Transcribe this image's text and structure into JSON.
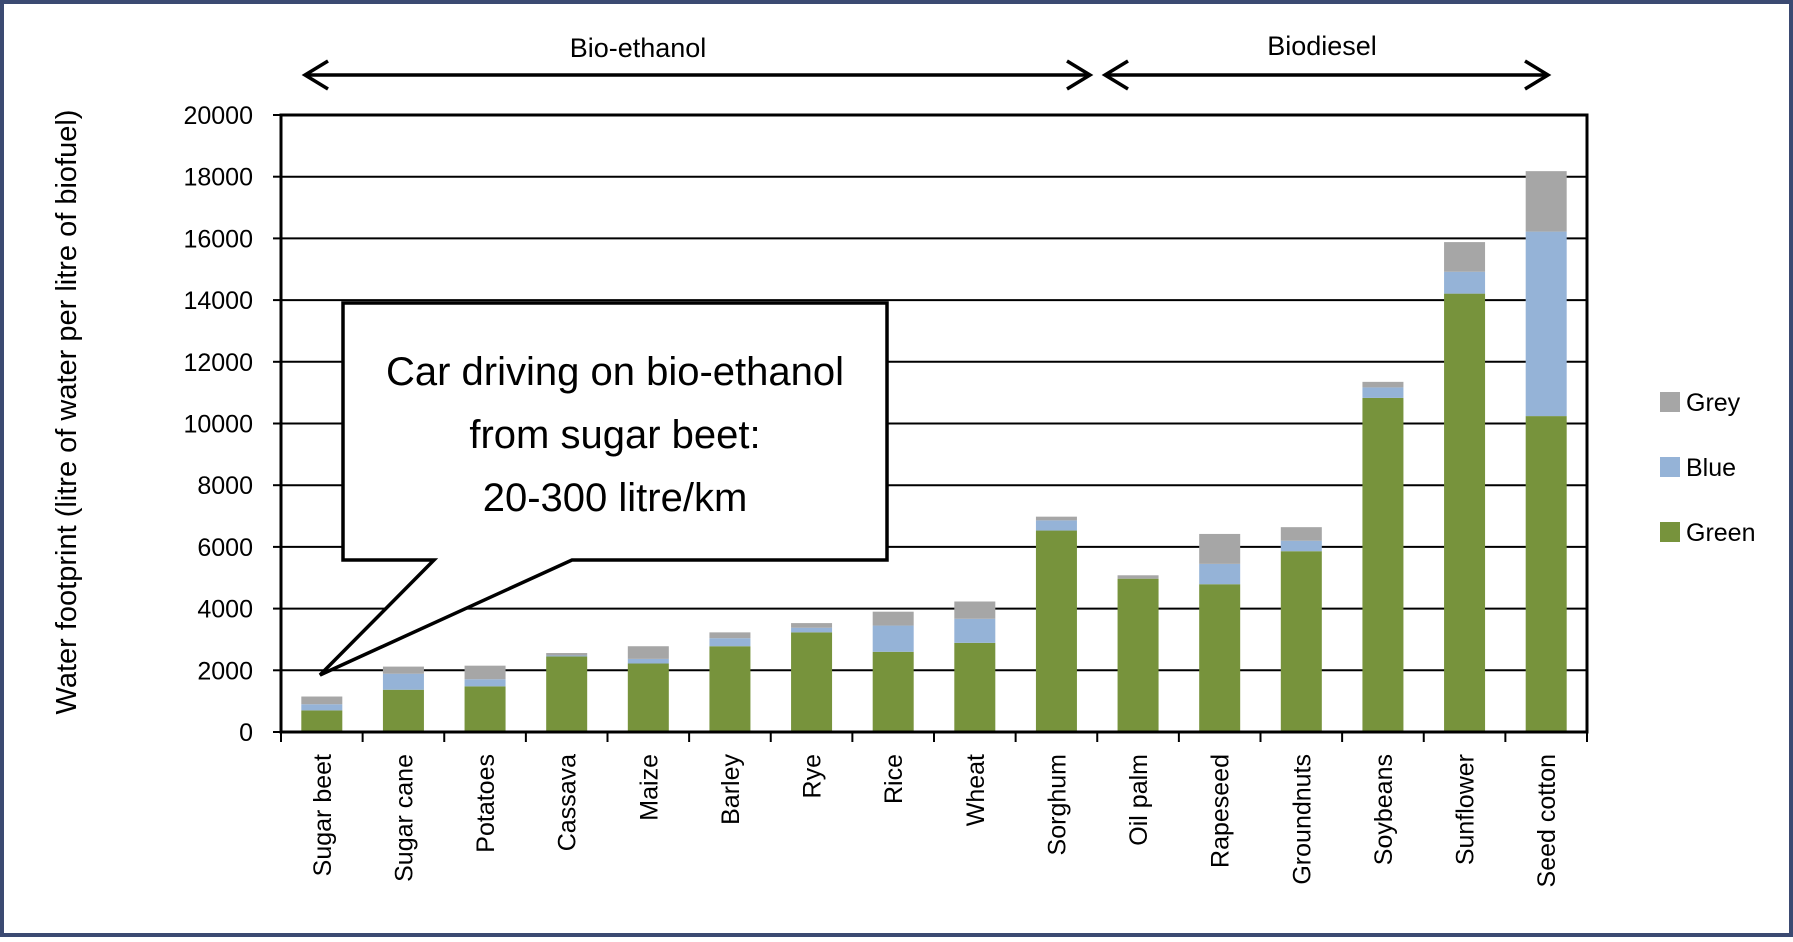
{
  "chart_data": {
    "type": "bar",
    "stacked": true,
    "y_label": "Water footprint (litre of water per litre of biofuel)",
    "categories": [
      "Sugar beet",
      "Sugar cane",
      "Potatoes",
      "Cassava",
      "Maize",
      "Barley",
      "Rye",
      "Rice",
      "Wheat",
      "Sorghum",
      "Oil palm",
      "Rapeseed",
      "Groundnuts",
      "Soybeans",
      "Sunflower",
      "Seed cotton"
    ],
    "series": [
      {
        "name": "Green",
        "color": "#77933c",
        "values": [
          700,
          1370,
          1480,
          2450,
          2220,
          2780,
          3230,
          2600,
          2890,
          6530,
          4970,
          4790,
          5860,
          10830,
          14210,
          10240
        ]
      },
      {
        "name": "Blue",
        "color": "#95b3d7",
        "values": [
          200,
          520,
          230,
          30,
          150,
          260,
          150,
          850,
          780,
          330,
          0,
          660,
          340,
          340,
          710,
          5980
        ]
      },
      {
        "name": "Grey",
        "color": "#a6a6a6",
        "values": [
          250,
          230,
          440,
          80,
          410,
          190,
          150,
          450,
          560,
          120,
          110,
          970,
          440,
          180,
          960,
          1960
        ]
      }
    ],
    "ylim": [
      0,
      20000
    ],
    "yticks": [
      0,
      2000,
      4000,
      6000,
      8000,
      10000,
      12000,
      14000,
      16000,
      18000,
      20000
    ],
    "grid": true,
    "legend": "right",
    "annotations": {
      "groups": [
        "Bio-ethanol",
        "Biodiesel"
      ],
      "callout": [
        "Car driving on bio-ethanol",
        "from sugar beet:",
        "20-300 litre/km"
      ]
    }
  }
}
